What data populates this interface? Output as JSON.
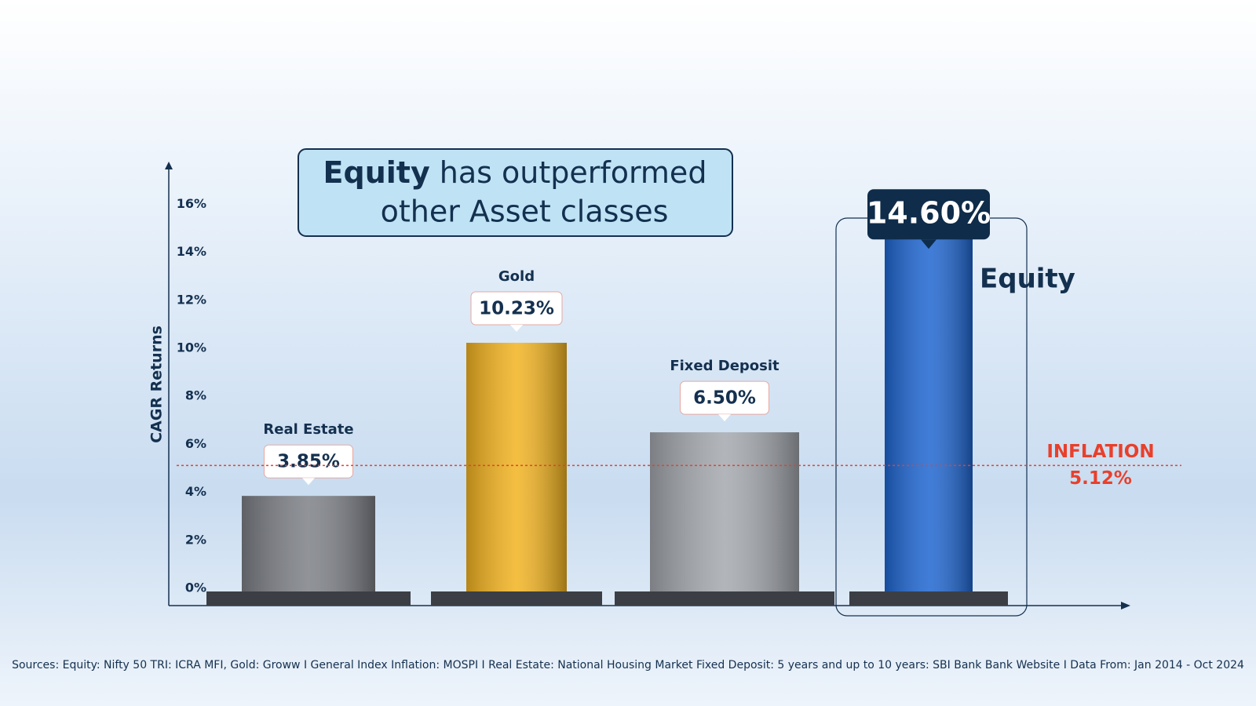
{
  "chart_data": {
    "type": "bar",
    "title": {
      "emphasis": "Equity",
      "line1_rest": "has outperformed",
      "line2": "other Asset classes"
    },
    "y_label": "CAGR Returns",
    "categories": [
      "Real Estate",
      "Gold",
      "Fixed Deposit",
      "Equity"
    ],
    "values": [
      3.85,
      10.23,
      6.5,
      14.6
    ],
    "value_labels": [
      "3.85%",
      "10.23%",
      "6.50%",
      "14.60%"
    ],
    "colors": [
      "#7d8087",
      "#f2b320",
      "#a4a8ae",
      "#1f66d1"
    ],
    "ylim": [
      0,
      17.68
    ],
    "yticks": [
      {
        "value": 0,
        "label": "0%"
      },
      {
        "value": 2,
        "label": "2%"
      },
      {
        "value": 4,
        "label": "4%"
      },
      {
        "value": 6,
        "label": "6%"
      },
      {
        "value": 8,
        "label": "8%"
      },
      {
        "value": 10,
        "label": "10%"
      },
      {
        "value": 12,
        "label": "12%"
      },
      {
        "value": 14,
        "label": "14%"
      },
      {
        "value": 16,
        "label": "16%"
      }
    ],
    "reference_line": {
      "label": "INFLATION",
      "value": 5.12,
      "value_label": "5.12%",
      "color": "#e8402c"
    },
    "source": "Sources: Equity: Nifty 50 TRI: ICRA MFI, Gold: Groww I General Index Inflation: MOSPI I Real Estate: National Housing Market Fixed Deposit: 5 years and up to 10 years: SBI Bank Bank Website I Data From: Jan 2014 - Oct 2024"
  }
}
